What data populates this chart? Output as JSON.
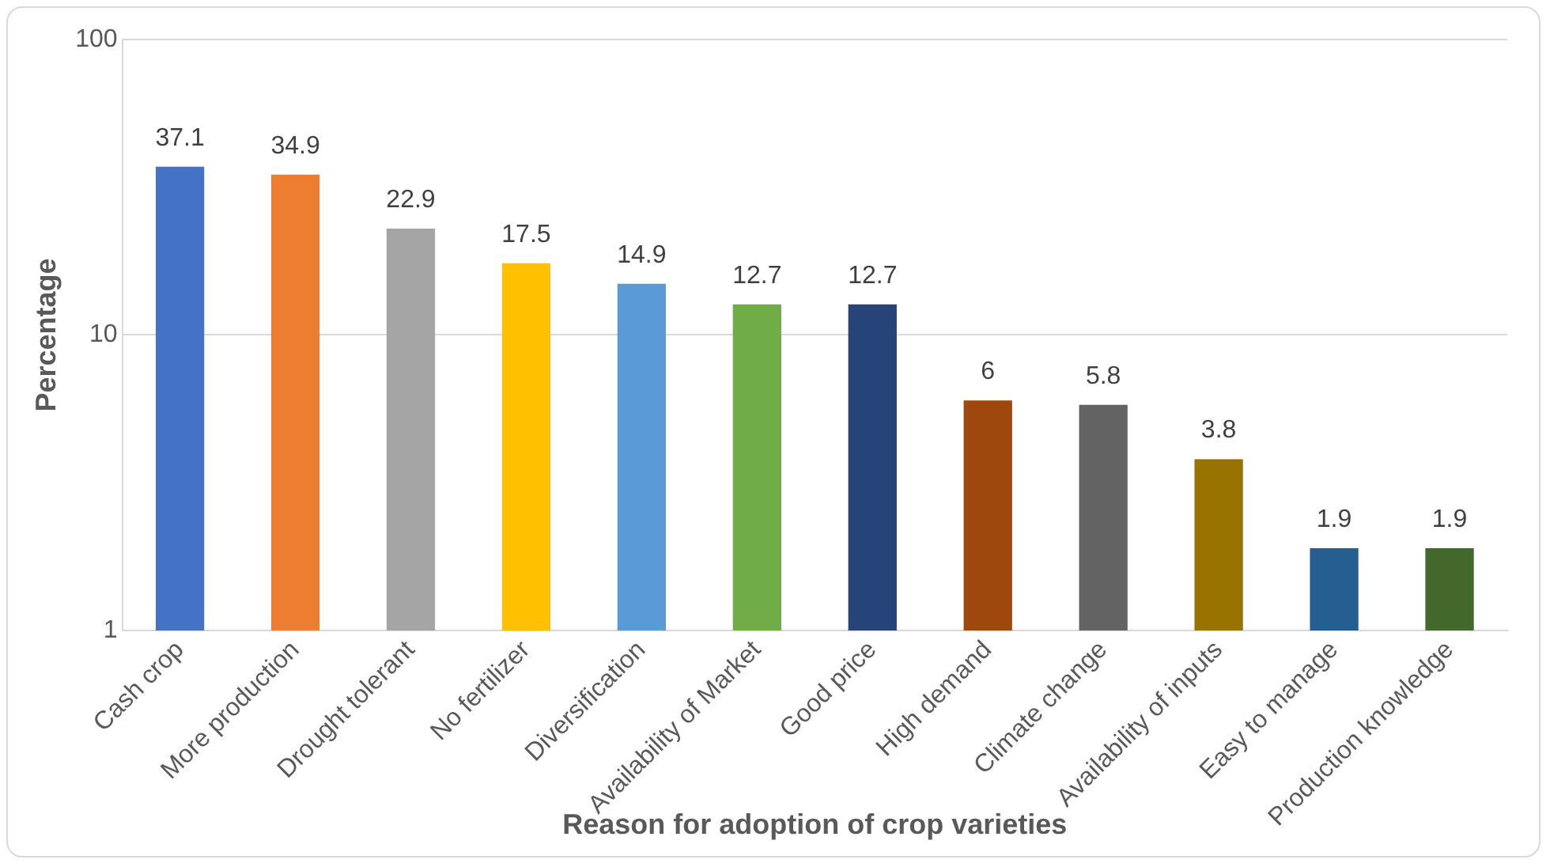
{
  "chart_data": {
    "type": "bar",
    "xlabel": "Reason for adoption of crop varieties",
    "ylabel": "Percentage",
    "categories": [
      "Cash crop",
      "More production",
      "Drought tolerant",
      "No fertilizer",
      "Diversification",
      "Availability of Market",
      "Good price",
      "High demand",
      "Climate change",
      "Availability of inputs",
      "Easy to manage",
      "Production knowledge"
    ],
    "values": [
      37.1,
      34.9,
      22.9,
      17.5,
      14.9,
      12.7,
      12.7,
      6,
      5.8,
      3.8,
      1.9,
      1.9
    ],
    "colors": [
      "#4472c4",
      "#ed7d31",
      "#a5a5a5",
      "#ffc000",
      "#5b9bd5",
      "#70ad47",
      "#264478",
      "#9e480e",
      "#636363",
      "#997300",
      "#255e91",
      "#43682b"
    ],
    "log": "y",
    "ylim": [
      1,
      100
    ],
    "yticks": [
      1,
      10,
      100
    ],
    "grid": "y",
    "data_labels": true,
    "legend": false
  }
}
